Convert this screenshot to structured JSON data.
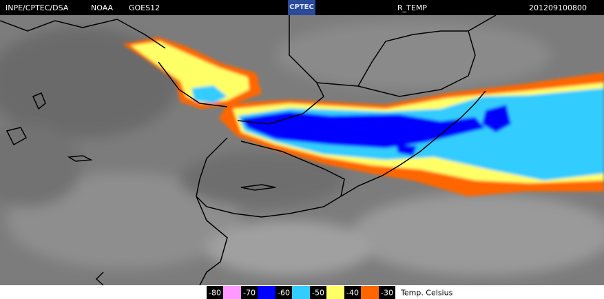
{
  "header": {
    "source": "INPE/CPTEC/DSA",
    "agency": "NOAA",
    "satellite": "GOES12",
    "logo": "CPTEC",
    "product": "R_TEMP",
    "timestamp": "201209100800"
  },
  "legend": {
    "labels": [
      "-80",
      "-70",
      "-60",
      "-50",
      "-40",
      "-30"
    ],
    "colors": [
      "#ff99ff",
      "#0000ff",
      "#33ccff",
      "#ffff66",
      "#ff6600"
    ],
    "unit": "Temp. Celsius"
  }
}
